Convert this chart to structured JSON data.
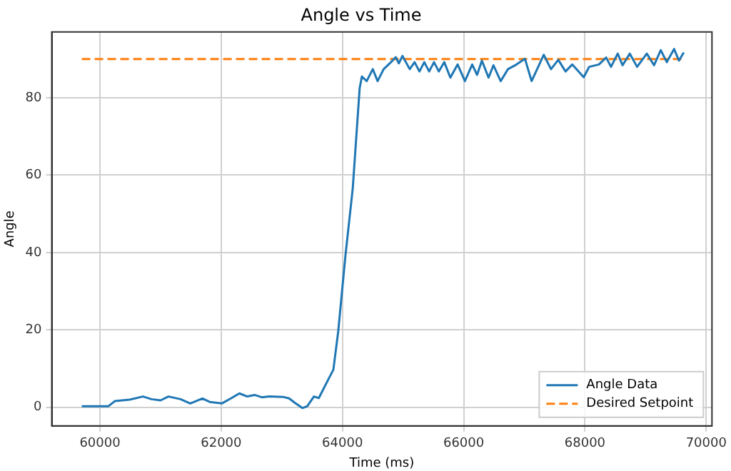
{
  "chart_data": {
    "type": "line",
    "title": "Angle vs Time",
    "xlabel": "Time (ms)",
    "ylabel": "Angle",
    "xlim": [
      59205,
      70095
    ],
    "xticks": [
      60000,
      62000,
      64000,
      66000,
      68000,
      70000
    ],
    "ylim": [
      -4.8,
      97
    ],
    "yticks": [
      0,
      20,
      40,
      60,
      80
    ],
    "grid": true,
    "legend": "bottom right",
    "marker": "none",
    "series": [
      {
        "name": "Angle Data",
        "color": "#1f77b4",
        "line_style": "solid",
        "x": [
          59700,
          60140,
          60245,
          60490,
          60710,
          60850,
          61000,
          61130,
          61330,
          61490,
          61690,
          61810,
          62010,
          62160,
          62300,
          62430,
          62550,
          62670,
          62790,
          63020,
          63120,
          63220,
          63340,
          63420,
          63530,
          63610,
          63770,
          63850,
          63930,
          64050,
          64170,
          64284,
          64320,
          64400,
          64500,
          64580,
          64680,
          64800,
          64880,
          64930,
          64990,
          65110,
          65190,
          65270,
          65350,
          65430,
          65510,
          65590,
          65680,
          65780,
          65900,
          66020,
          66140,
          66220,
          66300,
          66410,
          66490,
          66610,
          66730,
          66850,
          67010,
          67120,
          67320,
          67440,
          67560,
          67680,
          67790,
          67980,
          68070,
          68230,
          68350,
          68430,
          68540,
          68620,
          68740,
          68860,
          69020,
          69140,
          69250,
          69350,
          69470,
          69550,
          69630
        ],
        "values": [
          0.3,
          0.3,
          1.6,
          2.0,
          2.8,
          2.1,
          1.8,
          2.8,
          2.1,
          1.0,
          2.3,
          1.4,
          1.0,
          2.3,
          3.6,
          2.8,
          3.2,
          2.6,
          2.8,
          2.7,
          2.3,
          1.1,
          -0.2,
          0.3,
          2.8,
          2.4,
          7.3,
          9.7,
          19.6,
          39.3,
          56.6,
          82.5,
          85.5,
          84.3,
          87.4,
          84.3,
          87.4,
          89.2,
          90.5,
          88.9,
          90.8,
          87.4,
          89.2,
          86.8,
          89.2,
          86.8,
          89.2,
          86.8,
          89.2,
          85.2,
          88.6,
          84.3,
          88.6,
          85.9,
          89.6,
          85.2,
          88.4,
          84.3,
          87.4,
          88.4,
          90.1,
          84.3,
          91.1,
          87.4,
          89.8,
          86.8,
          88.6,
          85.3,
          88.0,
          88.6,
          90.4,
          88.0,
          91.4,
          88.4,
          91.4,
          88.0,
          91.4,
          88.4,
          92.3,
          89.2,
          92.6,
          89.6,
          91.7
        ]
      },
      {
        "name": "Desired Setpoint",
        "color": "#ff7f0e",
        "line_style": "dashed",
        "x": [
          59700,
          69630
        ],
        "values": [
          90,
          90
        ]
      }
    ]
  }
}
